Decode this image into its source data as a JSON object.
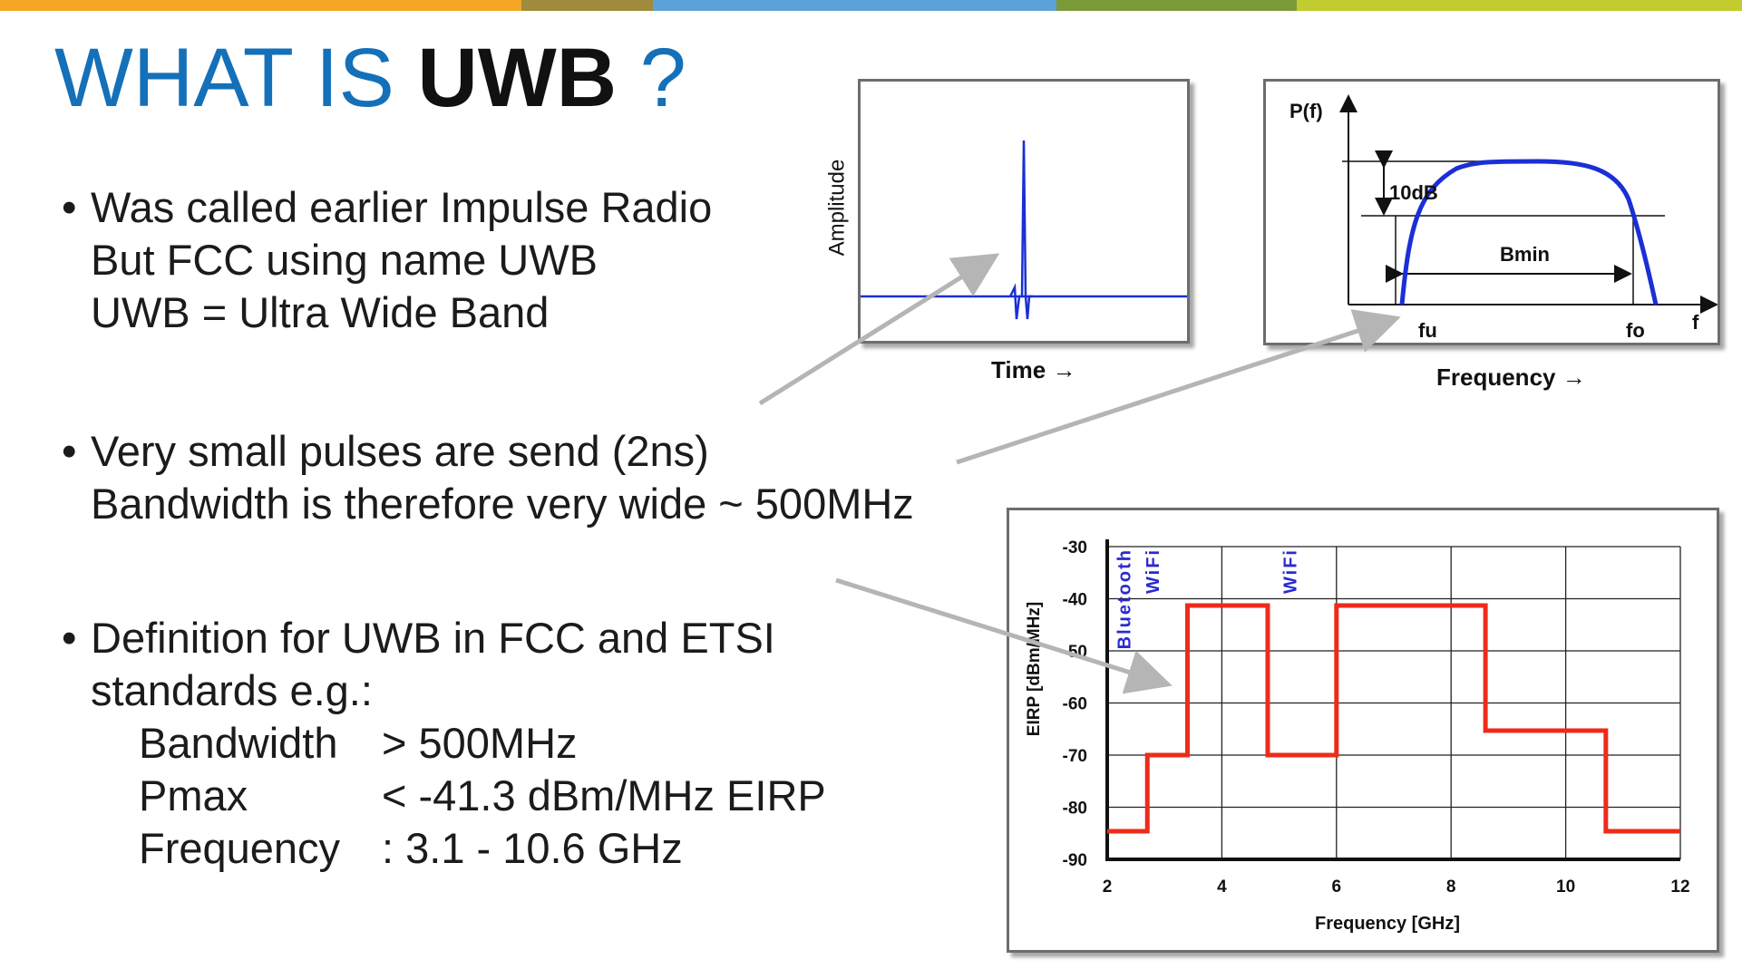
{
  "title": {
    "part1": "WHAT IS ",
    "part2": "UWB",
    "part3": " ?"
  },
  "bullets": {
    "b1": [
      "Was called earlier Impulse Radio",
      "But FCC using name UWB",
      "UWB = Ultra Wide Band"
    ],
    "b2": [
      "Very small pulses are send (2ns)",
      "Bandwidth is therefore very wide ~ 500MHz"
    ],
    "b3": [
      "Definition for UWB in FCC and ETSI",
      "standards e.g.:"
    ],
    "specs": [
      {
        "k": "Bandwidth",
        "v": "> 500MHz"
      },
      {
        "k": "Pmax",
        "v": "< -41.3 dBm/MHz EIRP"
      },
      {
        "k": "Frequency",
        "v": ": 3.1 - 10.6 GHz"
      }
    ]
  },
  "impulse": {
    "ylabel": "Amplitude",
    "xlabel": "Time →"
  },
  "spectrum": {
    "ylabel": "P(f)",
    "xlabel": "Frequency →",
    "axis_f": "f",
    "fu": "fu",
    "fo": "fo",
    "db": "10dB",
    "bmin": "Bmin"
  },
  "colors": {
    "accent": "#1470b8",
    "signal": "#1a2fd6",
    "mask": "#ee2b1a",
    "band_label": "#2a2ad0"
  },
  "topbar_colors": [
    "#f5a623",
    "#a08a3c",
    "#5aa2d8",
    "#7a9a3a",
    "#c3cc2f"
  ],
  "chart_data": {
    "type": "line",
    "title": "",
    "xlabel": "Frequency [GHz]",
    "ylabel": "EIRP [dBm/MHz]",
    "xlim": [
      2,
      12
    ],
    "ylim": [
      -90,
      -30
    ],
    "xticks": [
      2,
      4,
      6,
      8,
      10,
      12
    ],
    "yticks": [
      -30,
      -40,
      -50,
      -60,
      -70,
      -80,
      -90
    ],
    "grid": true,
    "series": [
      {
        "x": [
          2,
          2.7,
          2.7,
          3.4,
          3.4,
          4.8,
          4.8,
          6.0,
          6.0,
          8.6,
          8.6,
          10.7,
          10.7,
          12
        ],
        "y": [
          -84.6,
          -84.6,
          -70,
          -70,
          -41.3,
          -41.3,
          -70,
          -70,
          -41.3,
          -41.3,
          -65.3,
          -65.3,
          -84.6,
          -84.6
        ]
      }
    ],
    "annotations": [
      {
        "text": "Bluetooth",
        "x": 2.4
      },
      {
        "text": "WiFi",
        "x": 2.9
      },
      {
        "text": "WiFi",
        "x": 5.3
      }
    ]
  }
}
